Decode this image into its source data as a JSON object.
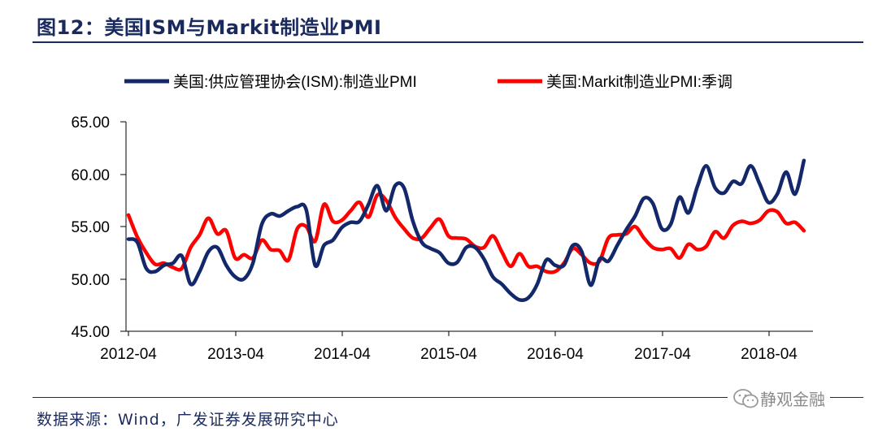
{
  "header": {
    "title": "图12：美国ISM与Markit制造业PMI"
  },
  "footer": {
    "source": "数据来源：Wind，广发证券发展研究中心",
    "watermark": "静观金融",
    "watermark_icon": "wechat-icon"
  },
  "colors": {
    "series_ism": "#13286b",
    "series_markit": "#ff0000",
    "text_dark": "#1a2a5e"
  },
  "chart_data": {
    "type": "line",
    "title": "图12：美国ISM与Markit制造业PMI",
    "xlabel": "",
    "ylabel": "",
    "ylim": [
      45,
      65
    ],
    "yticks": [
      "45.00",
      "50.00",
      "55.00",
      "60.00",
      "65.00"
    ],
    "xticks": [
      "2012-04",
      "2013-04",
      "2014-04",
      "2015-04",
      "2016-04",
      "2017-04",
      "2018-04"
    ],
    "x_start": "2012-04",
    "legend_position": "top",
    "series": [
      {
        "name": "美国:供应管理协会(ISM):制造业PMI",
        "color": "#13286b",
        "values": [
          53.8,
          53.5,
          51.0,
          50.7,
          51.3,
          51.5,
          52.2,
          49.5,
          50.7,
          52.6,
          53.0,
          51.3,
          50.2,
          50.0,
          51.5,
          55.2,
          56.2,
          56.0,
          56.5,
          56.9,
          56.6,
          51.3,
          53.2,
          53.7,
          54.9,
          55.4,
          55.5,
          57.1,
          58.9,
          56.5,
          58.9,
          58.7,
          55.5,
          53.5,
          52.9,
          52.5,
          51.5,
          51.6,
          53.0,
          53.0,
          51.9,
          50.2,
          49.5,
          48.6,
          48.0,
          48.2,
          49.5,
          51.8,
          51.3,
          51.3,
          53.2,
          52.6,
          49.4,
          51.9,
          51.7,
          53.2,
          54.7,
          56.0,
          57.7,
          57.2,
          54.8,
          55.2,
          57.8,
          56.3,
          58.8,
          60.8,
          58.7,
          58.2,
          59.3,
          59.1,
          60.8,
          59.1,
          57.3,
          58.1,
          60.2,
          58.1,
          61.3
        ]
      },
      {
        "name": "美国:Markit制造业PMI:季调",
        "color": "#ff0000",
        "values": [
          56.1,
          54.0,
          52.5,
          51.4,
          51.5,
          51.1,
          51.0,
          53.0,
          54.2,
          55.8,
          54.3,
          54.6,
          52.0,
          52.3,
          52.0,
          53.7,
          52.8,
          52.7,
          51.8,
          54.8,
          55.0,
          53.6,
          57.1,
          55.5,
          55.6,
          56.5,
          57.3,
          55.9,
          58.0,
          57.5,
          55.9,
          54.8,
          53.9,
          53.9,
          54.9,
          55.7,
          54.1,
          53.9,
          53.8,
          53.1,
          53.0,
          54.1,
          52.6,
          51.2,
          52.4,
          51.2,
          51.2,
          50.7,
          50.7,
          51.5,
          52.9,
          52.3,
          51.5,
          51.7,
          53.9,
          54.2,
          54.3,
          55.0,
          53.9,
          53.0,
          52.8,
          52.9,
          52.0,
          53.3,
          52.8,
          53.1,
          54.5,
          53.9,
          55.1,
          55.5,
          55.3,
          55.6,
          56.5,
          56.4,
          55.3,
          55.4,
          54.6
        ]
      }
    ]
  }
}
